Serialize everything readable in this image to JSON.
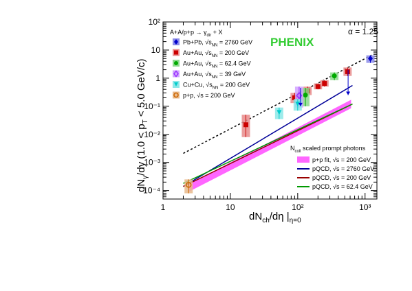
{
  "chart_data": {
    "type": "scatter",
    "title": "",
    "xlabel": "dN",
    "xlabel_sub": "ch",
    "xlabel_rest": "/dη |",
    "xlabel_sub2": "η=0",
    "ylabel_parts": [
      "dN",
      "γ",
      "/dy  (1.0 < p",
      "T",
      " < 5.0 GeV/c)"
    ],
    "x_scale": "log",
    "y_scale": "log",
    "xlim": [
      1,
      1500
    ],
    "ylim": [
      5e-05,
      100
    ],
    "x_ticks": [
      "1",
      "10",
      "10²",
      "10³"
    ],
    "y_ticks": [
      "10⁻⁴",
      "10⁻³",
      "10⁻²",
      "10⁻¹",
      "1",
      "10",
      "10²"
    ],
    "annotations": {
      "experiment": "PHENIX",
      "alpha": "α = 1.25",
      "legend_header": "A+A/p+p → γdir + X",
      "band_header": "Ncoll scaled prompt photons"
    },
    "colors": {
      "pbpb": "#0000cc",
      "auau200": "#cc0000",
      "auau62": "#00aa00",
      "auau39": "#9933ff",
      "cucu": "#00cccc",
      "pp": "#cc6600",
      "band": "#ff66ff",
      "phenix": "#33cc33"
    },
    "series": [
      {
        "name": "Pb+Pb, √sNN = 2760 GeV",
        "marker": "diamond",
        "color": "#0000cc",
        "points": [
          {
            "x": 1200,
            "y": 5.0,
            "lo": 3.5,
            "hi": 6.5
          }
        ]
      },
      {
        "name": "Au+Au, √sNN = 200 GeV",
        "marker": "square",
        "color": "#cc0000",
        "points": [
          {
            "x": 17,
            "y": 0.022,
            "lo": 0.008,
            "hi": 0.05
          },
          {
            "x": 90,
            "y": 0.2,
            "lo": 0.13,
            "hi": 0.3
          },
          {
            "x": 140,
            "y": 0.35,
            "lo": 0.25,
            "hi": 0.5
          },
          {
            "x": 200,
            "y": 0.5,
            "lo": 0.4,
            "hi": 0.65
          },
          {
            "x": 250,
            "y": 0.65,
            "lo": 0.5,
            "hi": 0.85
          },
          {
            "x": 550,
            "y": 1.7,
            "lo": 1.2,
            "hi": 2.4
          }
        ]
      },
      {
        "name": "Au+Au, √sNN = 62.4 GeV",
        "marker": "circle",
        "color": "#00aa00",
        "points": [
          {
            "x": 130,
            "y": 0.25,
            "lo": 0.1,
            "hi": 0.45
          },
          {
            "x": 350,
            "y": 1.2,
            "lo": 0.85,
            "hi": 1.6
          }
        ]
      },
      {
        "name": "Au+Au, √sNN = 39 GeV",
        "marker": "diamond-open",
        "color": "#9933ff",
        "points": [
          {
            "x": 105,
            "y": 0.24,
            "lo": 0.09,
            "hi": 0.5
          }
        ]
      },
      {
        "name": "Cu+Cu, √sNN = 200 GeV",
        "marker": "triangle-down",
        "color": "#00cccc",
        "points": [
          {
            "x": 53,
            "y": 0.06,
            "lo": 0.035,
            "hi": 0.09
          },
          {
            "x": 100,
            "y": 0.12,
            "lo": 0.07,
            "hi": 0.18
          }
        ]
      },
      {
        "name": "p+p, √s = 200 GeV",
        "marker": "circle-open",
        "color": "#cc6600",
        "points": [
          {
            "x": 2.4,
            "y": 0.00016,
            "lo": 8e-05,
            "hi": 0.00025
          }
        ]
      }
    ],
    "upper_limits": [
      {
        "x": 110,
        "y_from": 0.45,
        "y_to": 0.1,
        "color": "#0000cc"
      },
      {
        "x": 560,
        "y_from": 2.0,
        "y_to": 0.25,
        "color": "#0000cc"
      }
    ],
    "fit": {
      "alpha": 1.25,
      "x_range": [
        2,
        1300
      ],
      "anchor": {
        "x": 100,
        "y": 0.28
      }
    },
    "band": {
      "name": "p+p fit, √s = 200 GeV",
      "x_range": [
        2.4,
        620
      ],
      "low_at_xmin": 9e-05,
      "high_at_xmin": 0.00017,
      "low_at_xmax": 0.085,
      "high_at_xmax": 0.17
    },
    "pqcd_lines": [
      {
        "name": "pQCD, √s = 2760 GeV",
        "color": "#000099",
        "x": [
          2,
          650
        ],
        "y": [
          0.00014,
          0.55
        ]
      },
      {
        "name": "pQCD, √s = 200 GeV",
        "color": "#990000",
        "x": [
          2,
          650
        ],
        "y": [
          0.00014,
          0.12
        ]
      },
      {
        "name": "pQCD, √s = 62.4 GeV",
        "color": "#009900",
        "x": [
          2,
          650
        ],
        "y": [
          0.00018,
          0.12
        ]
      }
    ]
  }
}
